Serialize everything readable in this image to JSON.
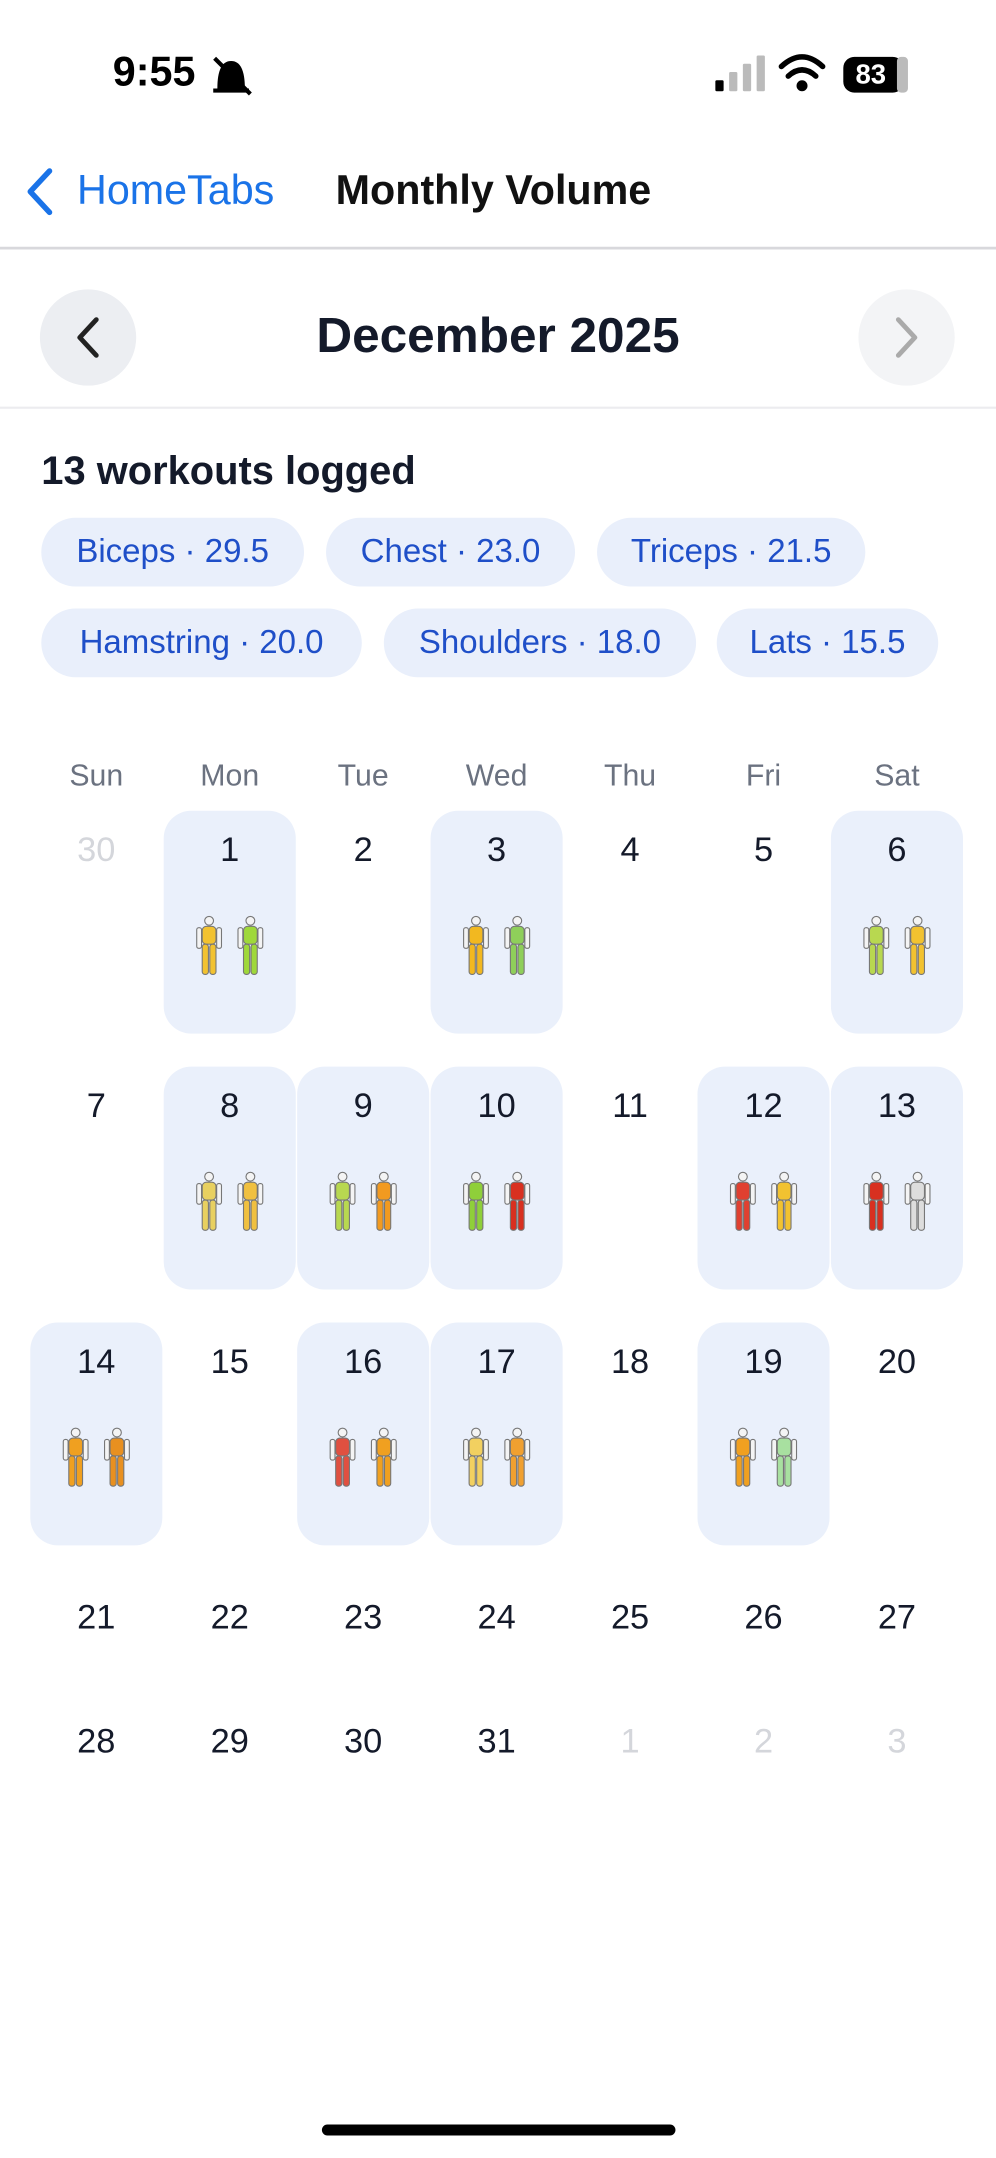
{
  "status": {
    "time": "9:55",
    "battery": "83"
  },
  "nav": {
    "back": "HomeTabs",
    "title": "Monthly Volume"
  },
  "month": "December 2025",
  "summary": "13 workouts logged",
  "chips": [
    "Biceps · 29.5",
    "Chest · 23.0",
    "Triceps · 21.5",
    "Hamstring · 20.0",
    "Shoulders · 18.0",
    "Lats · 15.5"
  ],
  "weekdays": [
    "Sun",
    "Mon",
    "Tue",
    "Wed",
    "Thu",
    "Fri",
    "Sat"
  ],
  "weeks": [
    [
      {
        "day": "30",
        "muted": true
      },
      {
        "day": "1",
        "figures": [
          "#f2c230",
          "#9fd83a"
        ]
      },
      {
        "day": "2"
      },
      {
        "day": "3",
        "figures": [
          "#f2b820",
          "#8fcf5a"
        ]
      },
      {
        "day": "4"
      },
      {
        "day": "5"
      },
      {
        "day": "6",
        "figures": [
          "#b8d850",
          "#f2c230"
        ]
      }
    ],
    [
      {
        "day": "7"
      },
      {
        "day": "8",
        "figures": [
          "#e8d060",
          "#f0c040"
        ]
      },
      {
        "day": "9",
        "figures": [
          "#b8d850",
          "#f29a20"
        ]
      },
      {
        "day": "10",
        "figures": [
          "#8fcf3a",
          "#d83020"
        ]
      },
      {
        "day": "11"
      },
      {
        "day": "12",
        "figures": [
          "#e04030",
          "#f2c230"
        ]
      },
      {
        "day": "13",
        "figures": [
          "#d83020",
          "#dddddd"
        ]
      }
    ],
    [
      {
        "day": "14",
        "figures": [
          "#f0a020",
          "#e89020"
        ]
      },
      {
        "day": "15"
      },
      {
        "day": "16",
        "figures": [
          "#e05040",
          "#f0a020"
        ]
      },
      {
        "day": "17",
        "figures": [
          "#f2d060",
          "#f0a030"
        ]
      },
      {
        "day": "18"
      },
      {
        "day": "19",
        "figures": [
          "#f0a020",
          "#a8e0a0"
        ]
      },
      {
        "day": "20"
      }
    ],
    [
      {
        "day": "21"
      },
      {
        "day": "22"
      },
      {
        "day": "23"
      },
      {
        "day": "24"
      },
      {
        "day": "25"
      },
      {
        "day": "26"
      },
      {
        "day": "27"
      }
    ],
    [
      {
        "day": "28"
      },
      {
        "day": "29"
      },
      {
        "day": "30"
      },
      {
        "day": "31"
      },
      {
        "day": "1",
        "muted": true
      },
      {
        "day": "2",
        "muted": true
      },
      {
        "day": "3",
        "muted": true
      }
    ]
  ]
}
